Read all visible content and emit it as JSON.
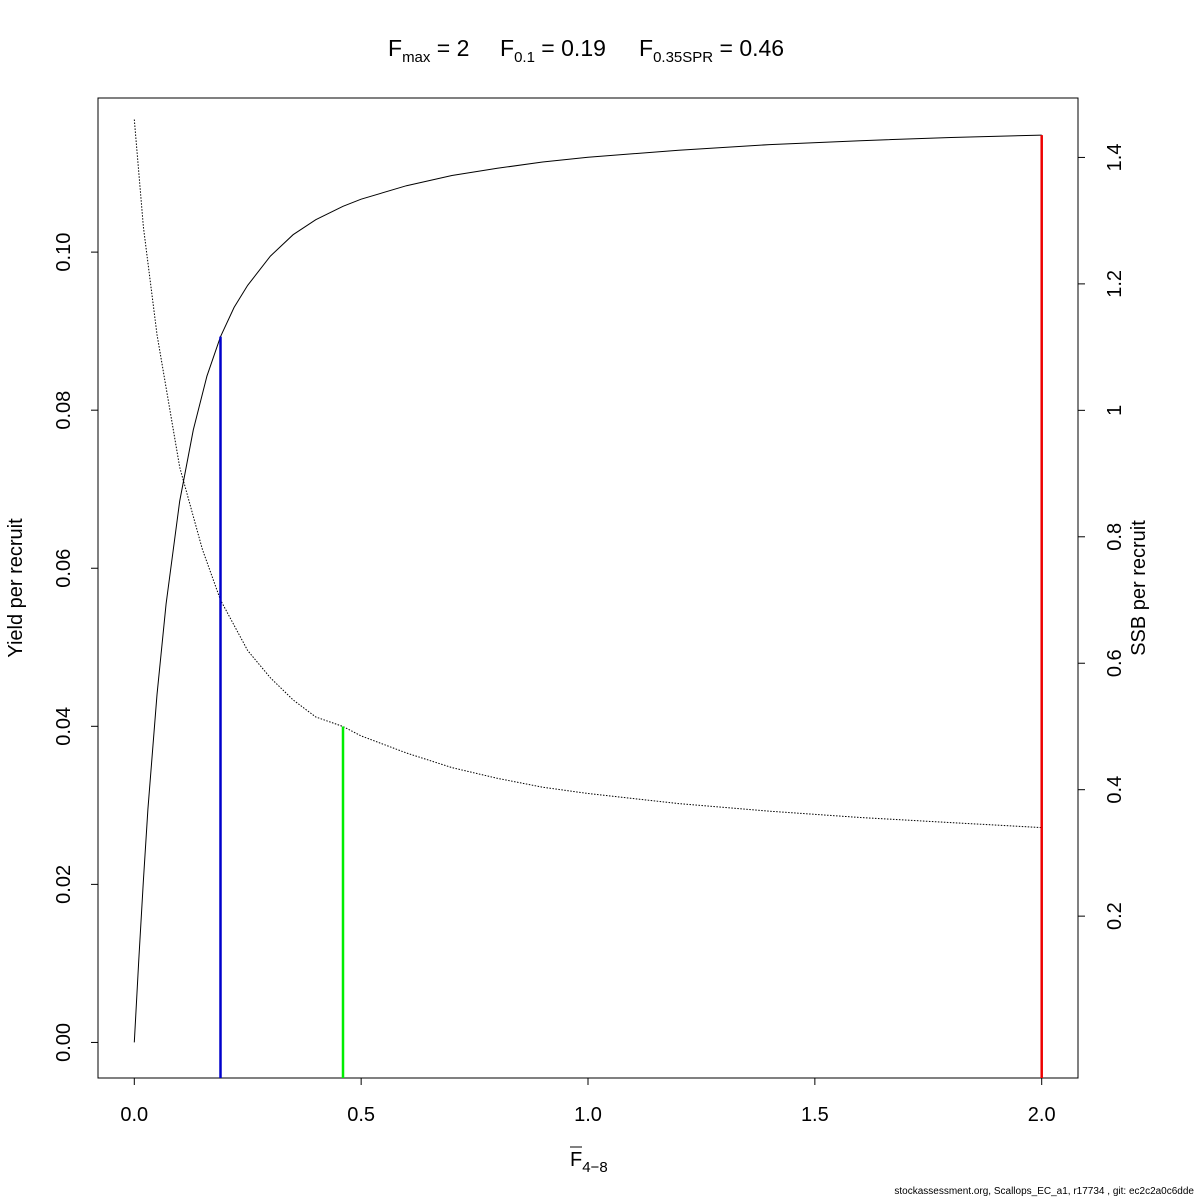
{
  "chart_data": {
    "type": "line",
    "title": {
      "parts": [
        {
          "base": "F",
          "sub": "max",
          "value": "2"
        },
        {
          "base": "F",
          "sub": "0.1",
          "value": "0.19"
        },
        {
          "base": "F",
          "sub": "0.35SPR",
          "value": "0.46"
        }
      ]
    },
    "xlabel": {
      "base": "F",
      "sub": "4−8"
    },
    "ylabel": "Yield per recruit",
    "y2label": "SSB per recruit",
    "xlim": [
      -0.08,
      2.08
    ],
    "ylim": [
      -0.0045,
      0.1195
    ],
    "y2lim": [
      -0.056,
      1.494
    ],
    "xticks": [
      0.0,
      0.5,
      1.0,
      1.5,
      2.0
    ],
    "xtick_labels": [
      "0.0",
      "0.5",
      "1.0",
      "1.5",
      "2.0"
    ],
    "yticks": [
      0.0,
      0.02,
      0.04,
      0.06,
      0.08,
      0.1
    ],
    "ytick_labels": [
      "0.00",
      "0.02",
      "0.04",
      "0.06",
      "0.08",
      "0.10"
    ],
    "y2ticks": [
      0.2,
      0.4,
      0.6,
      0.8,
      1.0,
      1.2,
      1.4
    ],
    "y2tick_labels": [
      "0.2",
      "0.4",
      "0.6",
      "0.8",
      "1",
      "1.2",
      "1.4"
    ],
    "series": [
      {
        "axis": "left",
        "style": "solid",
        "color": "#000000",
        "x": [
          0,
          0.01,
          0.02,
          0.03,
          0.05,
          0.07,
          0.1,
          0.13,
          0.16,
          0.19,
          0.22,
          0.25,
          0.3,
          0.35,
          0.4,
          0.46,
          0.5,
          0.6,
          0.7,
          0.8,
          0.9,
          1.0,
          1.2,
          1.4,
          1.6,
          1.8,
          2.0
        ],
        "y": [
          0,
          0.0105,
          0.0205,
          0.0295,
          0.044,
          0.0555,
          0.0685,
          0.0775,
          0.0843,
          0.0893,
          0.093,
          0.0958,
          0.0995,
          0.1022,
          0.1041,
          0.1058,
          0.1067,
          0.1084,
          0.1097,
          0.1106,
          0.1114,
          0.112,
          0.1129,
          0.1136,
          0.1141,
          0.1145,
          0.1148
        ]
      },
      {
        "axis": "right",
        "style": "dotted",
        "color": "#000000",
        "x": [
          0,
          0.02,
          0.05,
          0.1,
          0.15,
          0.19,
          0.25,
          0.3,
          0.35,
          0.4,
          0.46,
          0.5,
          0.6,
          0.7,
          0.8,
          0.9,
          1.0,
          1.2,
          1.4,
          1.6,
          1.8,
          2.0
        ],
        "y": [
          1.46,
          1.29,
          1.12,
          0.91,
          0.78,
          0.7,
          0.62,
          0.577,
          0.542,
          0.515,
          0.5,
          0.485,
          0.458,
          0.435,
          0.418,
          0.404,
          0.394,
          0.378,
          0.366,
          0.356,
          0.348,
          0.34
        ]
      }
    ],
    "reference_lines": [
      {
        "label": "F0.1",
        "x": 0.19,
        "y_top": 0.0893,
        "axis": "left",
        "color": "#0000cc"
      },
      {
        "label": "F0.35SPR",
        "x": 0.46,
        "y_top": 0.5,
        "axis": "right",
        "color": "#00ee00"
      },
      {
        "label": "Fmax",
        "x": 2.0,
        "y_top": 0.1148,
        "axis": "left",
        "color": "#ee0000"
      }
    ]
  },
  "footer": "stockassessment.org, Scallops_EC_a1, r17734 , git: ec2c2a0c6dde"
}
